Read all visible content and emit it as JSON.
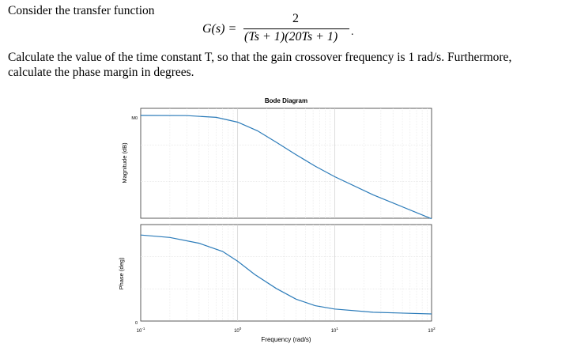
{
  "problem": {
    "intro": "Consider the transfer function",
    "equation": {
      "lhs": "G(s) =",
      "numerator": "2",
      "denominator": "(Ts + 1)(20Ts + 1)",
      "trailing": "."
    },
    "question_line1": "Calculate the value of the time constant T, so that the gain crossover frequency is 1 rad/s. Furthermore,",
    "question_line2": "calculate the phase margin in degrees."
  },
  "chart_data": {
    "type": "line",
    "title": "Bode Diagram",
    "xlabel": "Frequency (rad/s)",
    "x_scale": "log",
    "xlim": [
      0.1,
      100
    ],
    "x_ticks": [
      "10^-1",
      "10^0",
      "10^1",
      "10^2"
    ],
    "grid": true,
    "panels": [
      {
        "name": "magnitude",
        "ylabel": "Magnitude (dB)",
        "y_tick_labels": [
          "M0"
        ],
        "x": [
          0.1,
          0.3,
          0.6,
          1,
          1.6,
          2.5,
          4,
          6.3,
          10,
          25,
          100
        ],
        "y": [
          1.0,
          0.998,
          0.98,
          0.93,
          0.84,
          0.72,
          0.59,
          0.47,
          0.36,
          0.17,
          -0.08
        ]
      },
      {
        "name": "phase",
        "ylabel": "Phase (deg)",
        "y_tick_labels": [
          "0"
        ],
        "x": [
          0.1,
          0.2,
          0.4,
          0.7,
          1,
          1.5,
          2.5,
          4,
          6.3,
          10,
          25,
          100
        ],
        "y": [
          0.96,
          0.93,
          0.86,
          0.76,
          0.64,
          0.48,
          0.31,
          0.18,
          0.1,
          0.06,
          0.02,
          0.0
        ]
      }
    ]
  }
}
